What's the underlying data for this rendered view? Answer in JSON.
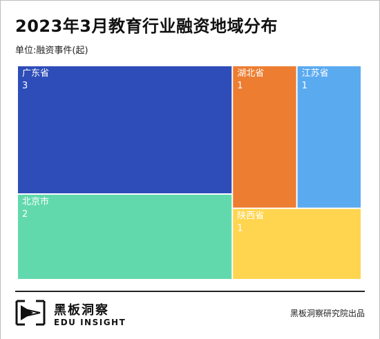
{
  "chart_data": {
    "type": "treemap",
    "title": "2023年3月教育行业融资地域分布",
    "subtitle": "单位:融资事件(起)",
    "items": [
      {
        "name": "广东省",
        "value": 3,
        "color": "#2e4db8"
      },
      {
        "name": "北京市",
        "value": 2,
        "color": "#62d9ad"
      },
      {
        "name": "湖北省",
        "value": 1,
        "color": "#ed7d31"
      },
      {
        "name": "江苏省",
        "value": 1,
        "color": "#5aaaf0"
      },
      {
        "name": "陕西省",
        "value": 1,
        "color": "#ffd54f"
      }
    ]
  },
  "footer": {
    "brand_cn": "黑板洞察",
    "brand_en": "EDU INSIGHT",
    "source": "黑板洞察研究院出品"
  }
}
